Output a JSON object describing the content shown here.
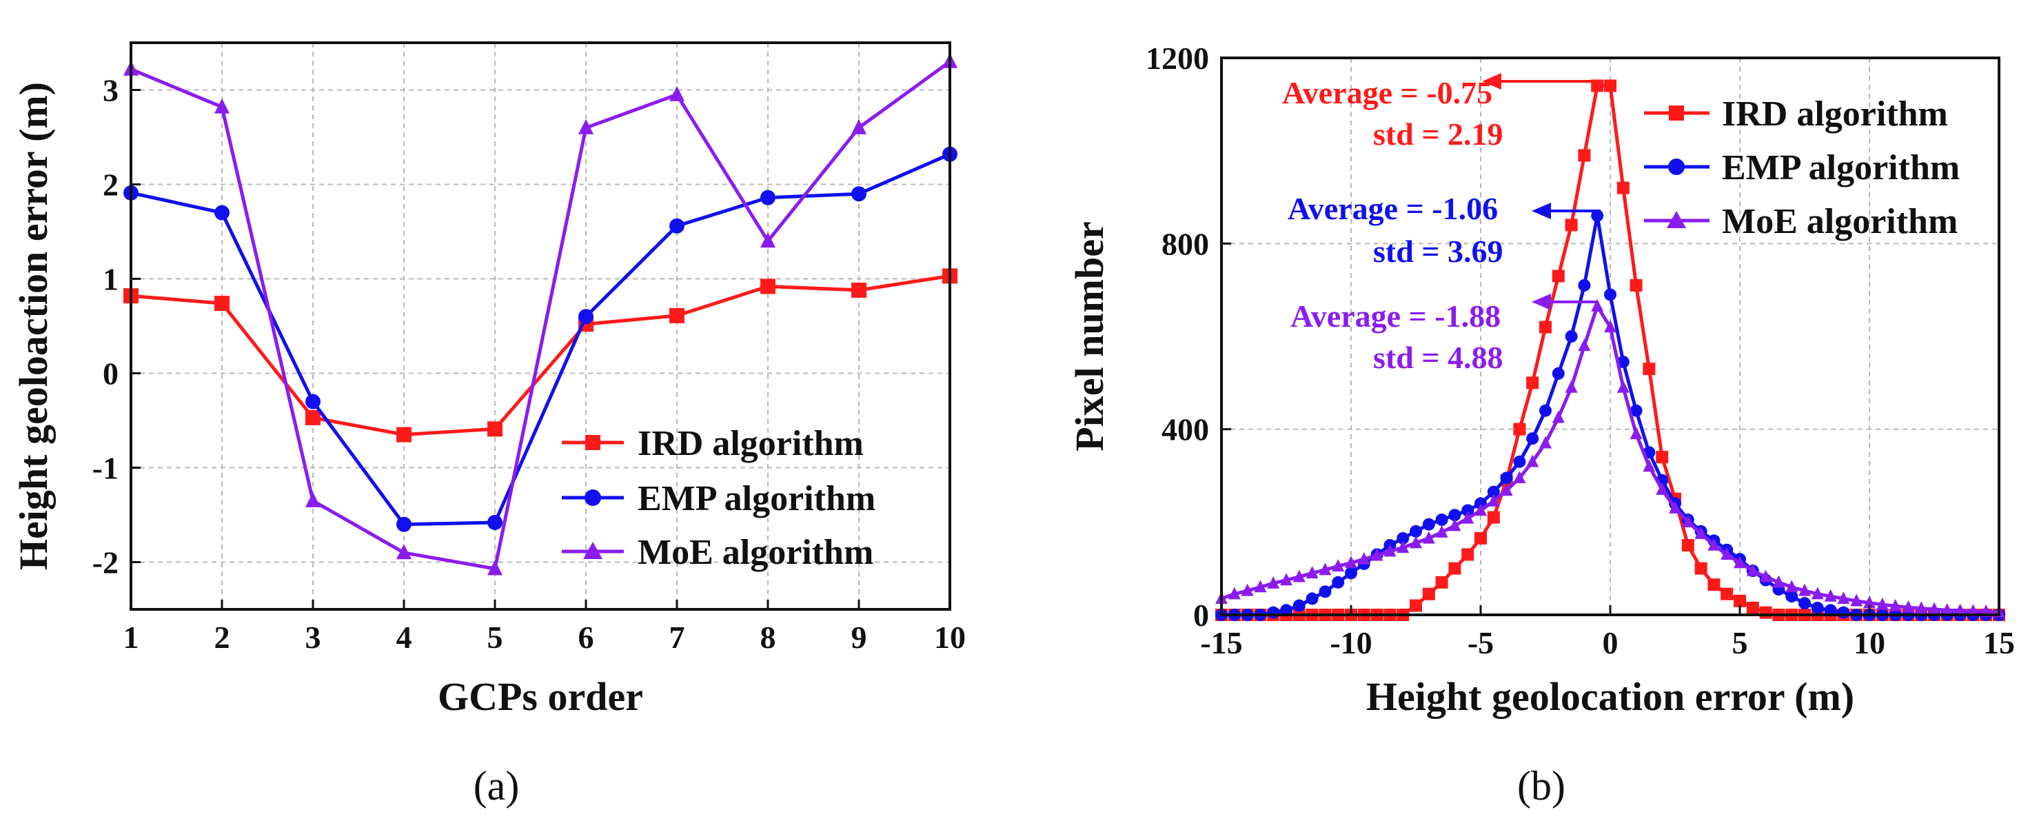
{
  "colors": {
    "ird": "#ff1a1a",
    "emp": "#1010ee",
    "moe": "#8a1cf0",
    "axis": "#111111",
    "grid": "#b8b8b8"
  },
  "chart_data": [
    {
      "id": "a",
      "type": "line",
      "panel_label": "(a)",
      "xlabel": "GCPs order",
      "ylabel": "Height geoloaction error (m)",
      "xlim": [
        1,
        10
      ],
      "ylim": [
        -2.5,
        3.5
      ],
      "xticks": [
        1,
        2,
        3,
        4,
        5,
        6,
        7,
        8,
        9,
        10
      ],
      "xtick_labels": [
        "1",
        "2",
        "3",
        "4",
        "5",
        "6",
        "7",
        "8",
        "9",
        "10"
      ],
      "yticks": [
        -2,
        -1,
        0,
        1,
        2,
        3
      ],
      "ytick_labels": [
        "-2",
        "-1",
        "0",
        "1",
        "2",
        "3"
      ],
      "grid": true,
      "legend_position": "bottom-right",
      "series": [
        {
          "name": "IRD algorithm",
          "color_key": "ird",
          "marker": "square",
          "x": [
            1,
            2,
            3,
            4,
            5,
            6,
            7,
            8,
            9,
            10
          ],
          "values": [
            0.82,
            0.74,
            -0.47,
            -0.65,
            -0.59,
            0.52,
            0.61,
            0.92,
            0.88,
            1.03
          ]
        },
        {
          "name": "EMP algorithm",
          "color_key": "emp",
          "marker": "circle",
          "x": [
            1,
            2,
            3,
            4,
            5,
            6,
            7,
            8,
            9,
            10
          ],
          "values": [
            1.91,
            1.7,
            -0.3,
            -1.6,
            -1.58,
            0.6,
            1.56,
            1.86,
            1.9,
            2.32
          ]
        },
        {
          "name": "MoE algorithm",
          "color_key": "moe",
          "marker": "triangle",
          "x": [
            1,
            2,
            3,
            4,
            5,
            6,
            7,
            8,
            9,
            10
          ],
          "values": [
            3.22,
            2.82,
            -1.35,
            -1.9,
            -2.07,
            2.6,
            2.95,
            1.4,
            2.6,
            3.3
          ]
        }
      ]
    },
    {
      "id": "b",
      "type": "line",
      "panel_label": "(b)",
      "xlabel": "Height geolocation error (m)",
      "ylabel": "Pixel number",
      "xlim": [
        -15,
        15
      ],
      "ylim": [
        0,
        1200
      ],
      "xticks": [
        -15,
        -10,
        -5,
        0,
        5,
        10,
        15
      ],
      "xtick_labels": [
        "-15",
        "-10",
        "-5",
        "0",
        "5",
        "10",
        "15"
      ],
      "yticks": [
        0,
        400,
        800,
        1200
      ],
      "ytick_labels": [
        "0",
        "400",
        "800",
        "1200"
      ],
      "grid": true,
      "legend_position": "top-right",
      "series": [
        {
          "name": "IRD algorithm",
          "color_key": "ird",
          "marker": "square",
          "x": [
            -15,
            -14.5,
            -14,
            -13.5,
            -13,
            -12.5,
            -12,
            -11.5,
            -11,
            -10.5,
            -10,
            -9.5,
            -9,
            -8.5,
            -8,
            -7.5,
            -7,
            -6.5,
            -6,
            -5.5,
            -5,
            -4.5,
            -4,
            -3.5,
            -3,
            -2.5,
            -2,
            -1.5,
            -1,
            -0.5,
            0,
            0.5,
            1,
            1.5,
            2,
            2.5,
            3,
            3.5,
            4,
            4.5,
            5,
            5.5,
            6,
            6.5,
            7,
            7.5,
            8,
            8.5,
            9,
            9.5,
            10,
            10.5,
            11,
            11.5,
            12,
            12.5,
            13,
            13.5,
            14,
            14.5,
            15
          ],
          "values": [
            0,
            0,
            0,
            0,
            0,
            0,
            0,
            0,
            0,
            0,
            0,
            0,
            0,
            0,
            0,
            20,
            45,
            70,
            100,
            130,
            165,
            210,
            290,
            400,
            500,
            620,
            730,
            840,
            990,
            1140,
            1140,
            920,
            710,
            530,
            340,
            250,
            150,
            100,
            65,
            45,
            30,
            15,
            5,
            0,
            0,
            0,
            0,
            0,
            0,
            0,
            0,
            0,
            0,
            0,
            0,
            0,
            0,
            0,
            0,
            0,
            0
          ]
        },
        {
          "name": "EMP algorithm",
          "color_key": "emp",
          "marker": "circle",
          "x": [
            -15,
            -14.5,
            -14,
            -13.5,
            -13,
            -12.5,
            -12,
            -11.5,
            -11,
            -10.5,
            -10,
            -9.5,
            -9,
            -8.5,
            -8,
            -7.5,
            -7,
            -6.5,
            -6,
            -5.5,
            -5,
            -4.5,
            -4,
            -3.5,
            -3,
            -2.5,
            -2,
            -1.5,
            -1,
            -0.5,
            0,
            0.5,
            1,
            1.5,
            2,
            2.5,
            3,
            3.5,
            4,
            4.5,
            5,
            5.5,
            6,
            6.5,
            7,
            7.5,
            8,
            8.5,
            9,
            9.5,
            10,
            10.5,
            11,
            11.5,
            12,
            12.5,
            13,
            13.5,
            14,
            14.5,
            15
          ],
          "values": [
            0,
            0,
            0,
            0,
            5,
            10,
            20,
            35,
            50,
            70,
            90,
            110,
            130,
            150,
            165,
            180,
            195,
            205,
            215,
            225,
            240,
            265,
            295,
            330,
            380,
            440,
            520,
            600,
            710,
            860,
            690,
            545,
            440,
            350,
            290,
            240,
            205,
            180,
            160,
            140,
            120,
            95,
            75,
            55,
            40,
            25,
            15,
            10,
            5,
            0,
            0,
            0,
            0,
            0,
            0,
            0,
            0,
            0,
            0,
            0,
            0
          ]
        },
        {
          "name": "MoE algorithm",
          "color_key": "moe",
          "marker": "triangle",
          "x": [
            -15,
            -14.5,
            -14,
            -13.5,
            -13,
            -12.5,
            -12,
            -11.5,
            -11,
            -10.5,
            -10,
            -9.5,
            -9,
            -8.5,
            -8,
            -7.5,
            -7,
            -6.5,
            -6,
            -5.5,
            -5,
            -4.5,
            -4,
            -3.5,
            -3,
            -2.5,
            -2,
            -1.5,
            -1,
            -0.5,
            0,
            0.5,
            1,
            1.5,
            2,
            2.5,
            3,
            3.5,
            4,
            4.5,
            5,
            5.5,
            6,
            6.5,
            7,
            7.5,
            8,
            8.5,
            9,
            9.5,
            10,
            10.5,
            11,
            11.5,
            12,
            12.5,
            13,
            13.5,
            14,
            14.5,
            15
          ],
          "values": [
            35,
            45,
            52,
            60,
            68,
            75,
            82,
            90,
            97,
            105,
            112,
            120,
            128,
            137,
            145,
            155,
            165,
            178,
            192,
            208,
            225,
            245,
            268,
            295,
            330,
            370,
            425,
            490,
            580,
            665,
            620,
            490,
            390,
            320,
            270,
            230,
            200,
            175,
            150,
            130,
            112,
            95,
            82,
            70,
            60,
            52,
            45,
            40,
            35,
            30,
            26,
            22,
            19,
            16,
            14,
            12,
            10,
            9,
            8,
            7,
            6
          ]
        }
      ],
      "annotations": [
        {
          "line1": "Average = -0.75",
          "line2": "std = 2.19",
          "color_key": "ird",
          "avg": -0.75,
          "arrow_to_x": 0,
          "arrow_y": 1140
        },
        {
          "line1": "Average = -1.06",
          "line2": "std = 3.69",
          "color_key": "emp",
          "avg": -1.06,
          "arrow_to_x": -0.5,
          "arrow_y": 860
        },
        {
          "line1": "Average = -1.88",
          "line2": "std = 4.88",
          "color_key": "moe",
          "avg": -1.88,
          "arrow_to_x": -0.5,
          "arrow_y": 680
        }
      ]
    }
  ]
}
